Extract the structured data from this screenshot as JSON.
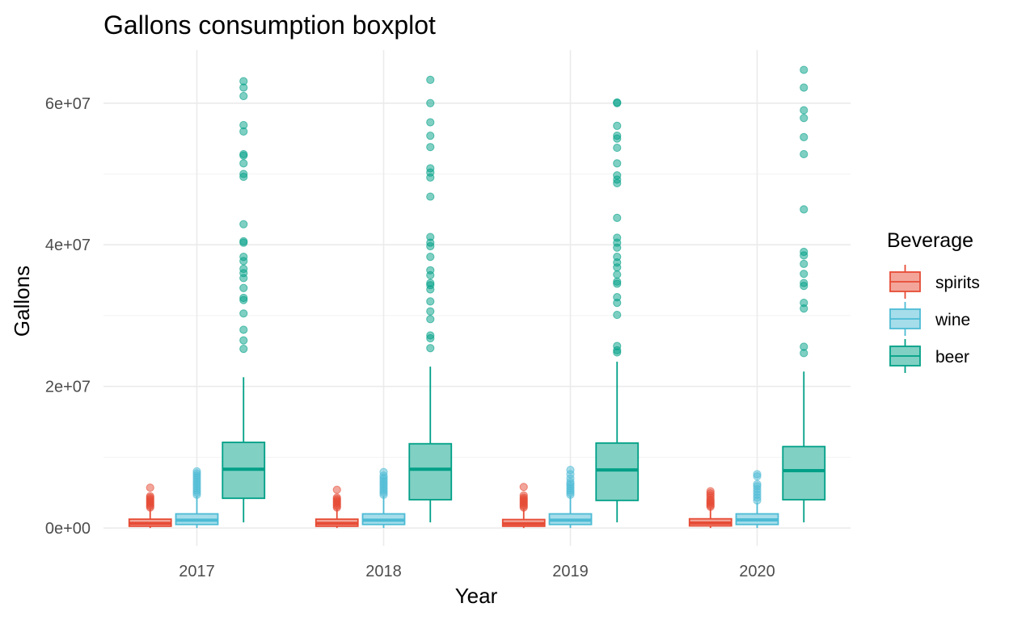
{
  "chart_data": {
    "type": "boxplot",
    "title": "Gallons consumption boxplot",
    "xlabel": "Year",
    "ylabel": "Gallons",
    "categories": [
      "2017",
      "2018",
      "2019",
      "2020"
    ],
    "ylim": [
      -2500000,
      67500000
    ],
    "y_ticks": [
      0,
      20000000,
      40000000,
      60000000
    ],
    "y_tick_labels": [
      "0e+00",
      "2e+07",
      "4e+07",
      "6e+07"
    ],
    "grid": true,
    "legend": {
      "title": "Beverage",
      "position": "right",
      "items": [
        "spirits",
        "wine",
        "beer"
      ]
    },
    "colors": {
      "spirits": "#E64B35",
      "wine": "#4DBBD5",
      "beer": "#00A087"
    },
    "series": [
      {
        "name": "spirits",
        "boxes": [
          {
            "category": "2017",
            "q1": 250000,
            "median": 650000,
            "q3": 1250000,
            "whisker_low": 0,
            "whisker_high": 2700000,
            "outliers": [
              2900000,
              3100000,
              3300000,
              3500000,
              3700000,
              3900000,
              4100000,
              4300000,
              4500000,
              5700000
            ]
          },
          {
            "category": "2018",
            "q1": 250000,
            "median": 650000,
            "q3": 1250000,
            "whisker_low": 0,
            "whisker_high": 2700000,
            "outliers": [
              2900000,
              3100000,
              3300000,
              3500000,
              3700000,
              3900000,
              4100000,
              4300000,
              5400000
            ]
          },
          {
            "category": "2019",
            "q1": 250000,
            "median": 600000,
            "q3": 1200000,
            "whisker_low": 0,
            "whisker_high": 2700000,
            "outliers": [
              2900000,
              3100000,
              3300000,
              3500000,
              3700000,
              3900000,
              4100000,
              4300000,
              4600000,
              5800000
            ]
          },
          {
            "category": "2020",
            "q1": 300000,
            "median": 700000,
            "q3": 1300000,
            "whisker_low": 0,
            "whisker_high": 2800000,
            "outliers": [
              3000000,
              3200000,
              3400000,
              3600000,
              3800000,
              4000000,
              4300000,
              4600000,
              4900000,
              5200000
            ]
          }
        ]
      },
      {
        "name": "wine",
        "boxes": [
          {
            "category": "2017",
            "q1": 500000,
            "median": 1100000,
            "q3": 2000000,
            "whisker_low": 0,
            "whisker_high": 4500000,
            "outliers": [
              4700000,
              5000000,
              5300000,
              5600000,
              5900000,
              6200000,
              6500000,
              6800000,
              7100000,
              7400000,
              7700000,
              8000000
            ]
          },
          {
            "category": "2018",
            "q1": 500000,
            "median": 1100000,
            "q3": 2000000,
            "whisker_low": 0,
            "whisker_high": 4500000,
            "outliers": [
              4700000,
              5000000,
              5300000,
              5600000,
              5900000,
              6200000,
              6500000,
              6800000,
              7100000,
              7400000,
              7900000
            ]
          },
          {
            "category": "2019",
            "q1": 500000,
            "median": 1100000,
            "q3": 2000000,
            "whisker_low": 0,
            "whisker_high": 4500000,
            "outliers": [
              4700000,
              5000000,
              5300000,
              5600000,
              5900000,
              6200000,
              6500000,
              7000000,
              7600000,
              8200000
            ]
          },
          {
            "category": "2020",
            "q1": 500000,
            "median": 1150000,
            "q3": 2000000,
            "whisker_low": 0,
            "whisker_high": 3600000,
            "outliers": [
              3900000,
              4300000,
              4700000,
              5100000,
              5500000,
              5900000,
              6200000,
              7300000,
              7600000
            ]
          }
        ]
      },
      {
        "name": "beer",
        "boxes": [
          {
            "category": "2017",
            "q1": 4200000,
            "median": 8300000,
            "q3": 12100000,
            "whisker_low": 800000,
            "whisker_high": 21300000,
            "outliers": [
              25300000,
              26500000,
              28000000,
              30300000,
              32200000,
              32500000,
              33900000,
              35300000,
              36000000,
              36600000,
              37700000,
              38300000,
              40300000,
              40500000,
              42900000,
              49600000,
              50000000,
              51500000,
              52600000,
              52800000,
              56000000,
              56900000,
              61000000,
              62200000,
              63100000
            ]
          },
          {
            "category": "2018",
            "q1": 4000000,
            "median": 8300000,
            "q3": 11900000,
            "whisker_low": 800000,
            "whisker_high": 22800000,
            "outliers": [
              25400000,
              26800000,
              27200000,
              29500000,
              30600000,
              32000000,
              33700000,
              34300000,
              34600000,
              35700000,
              36400000,
              38300000,
              39800000,
              40300000,
              41100000,
              46800000,
              49500000,
              50200000,
              50800000,
              53800000,
              55400000,
              57300000,
              60000000,
              63300000
            ]
          },
          {
            "category": "2019",
            "q1": 3900000,
            "median": 8200000,
            "q3": 12000000,
            "whisker_low": 800000,
            "whisker_high": 23500000,
            "outliers": [
              24800000,
              25100000,
              25700000,
              30100000,
              31800000,
              32600000,
              34500000,
              34800000,
              35800000,
              36800000,
              37500000,
              38300000,
              39600000,
              40300000,
              41000000,
              43800000,
              48700000,
              49200000,
              49800000,
              51500000,
              53700000,
              55000000,
              55400000,
              56800000,
              60000000,
              60100000
            ]
          },
          {
            "category": "2020",
            "q1": 4000000,
            "median": 8100000,
            "q3": 11500000,
            "whisker_low": 800000,
            "whisker_high": 22100000,
            "outliers": [
              24700000,
              25600000,
              31000000,
              31800000,
              34200000,
              34600000,
              35900000,
              37300000,
              38500000,
              39000000,
              45000000,
              52800000,
              55200000,
              57900000,
              59000000,
              62200000,
              64700000
            ]
          }
        ]
      }
    ]
  }
}
